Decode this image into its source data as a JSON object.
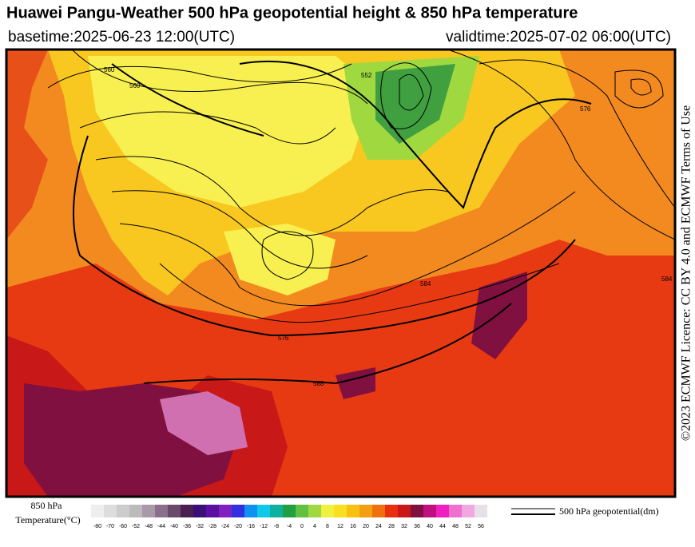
{
  "header": {
    "title": "Huawei Pangu-Weather 500 hPa geopotential height & 850 hPa temperature",
    "basetime": "basetime:2025-06-23 12:00(UTC)",
    "validtime": "validtime:2025-07-02 06:00(UTC)"
  },
  "license": "©2023 ECMWF Licence: CC BY 4.0 and ECMWF Terms of Use",
  "colorbar": {
    "title_lines": [
      "850 hPa",
      "Temperature(°C)"
    ],
    "ticks": [
      -80,
      -70,
      -60,
      -52,
      -48,
      -44,
      -40,
      -36,
      -32,
      -28,
      -24,
      -20,
      -16,
      -12,
      -8,
      -4,
      0,
      4,
      8,
      12,
      16,
      20,
      24,
      28,
      32,
      36,
      40,
      44,
      48,
      52,
      56
    ],
    "colors": [
      "#eeeeee",
      "#dddddd",
      "#cccccc",
      "#bbbbbb",
      "#a89aa8",
      "#8a708a",
      "#6a4a6a",
      "#4a2050",
      "#3a1078",
      "#5a10a0",
      "#8020c0",
      "#3030e0",
      "#1090f0",
      "#10c8e8",
      "#10b0a0",
      "#20a040",
      "#60c040",
      "#a0d840",
      "#f0f040",
      "#f8e020",
      "#f8c010",
      "#f0a010",
      "#f07010",
      "#e83010",
      "#c81818",
      "#801040",
      "#c01080",
      "#f020c0",
      "#f070d0",
      "#f0a8e0",
      "#e8e0e8"
    ]
  },
  "contour_legend": "500 hPa geopotential(dm)",
  "contour_labels": [
    "560",
    "560",
    "552",
    "576",
    "584",
    "588",
    "576",
    "584"
  ]
}
